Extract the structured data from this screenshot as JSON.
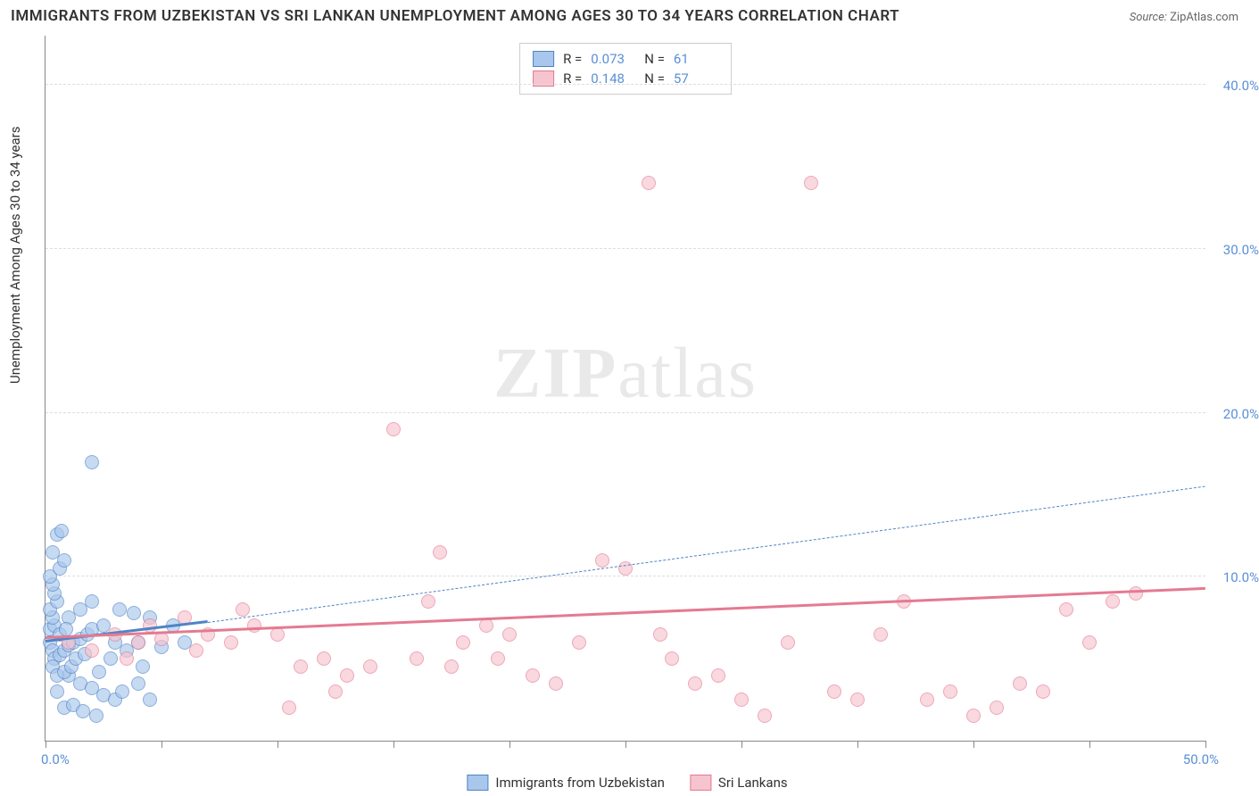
{
  "title": "IMMIGRANTS FROM UZBEKISTAN VS SRI LANKAN UNEMPLOYMENT AMONG AGES 30 TO 34 YEARS CORRELATION CHART",
  "source_label": "Source:",
  "source_name": "ZipAtlas.com",
  "watermark": {
    "bold": "ZIP",
    "rest": "atlas"
  },
  "ylabel": "Unemployment Among Ages 30 to 34 years",
  "chart": {
    "type": "scatter",
    "xlim": [
      0,
      50
    ],
    "ylim": [
      0,
      43
    ],
    "x_tick_positions": [
      0,
      5,
      10,
      15,
      20,
      25,
      30,
      35,
      40,
      45,
      50
    ],
    "x_tick_labels": {
      "min": "0.0%",
      "max": "50.0%"
    },
    "y_gridlines": [
      10,
      20,
      30,
      40
    ],
    "y_tick_labels": [
      "10.0%",
      "20.0%",
      "30.0%",
      "40.0%"
    ],
    "background_color": "#ffffff",
    "grid_color": "#dddddd",
    "axis_color": "#888888",
    "tick_label_color": "#5b8fd6",
    "marker_radius": 7,
    "marker_opacity": 0.65
  },
  "series": [
    {
      "name": "Immigrants from Uzbekistan",
      "fill": "#a9c7ec",
      "stroke": "#4f84c4",
      "r_value": "0.073",
      "n_value": "61",
      "trend": {
        "x1": 0,
        "y1": 6.0,
        "x2": 7,
        "y2": 7.2,
        "width": 3,
        "dashed": false,
        "extend_x2": 50,
        "extend_y2": 15.5,
        "extend_dashed": true
      },
      "points": [
        [
          0.2,
          6.0
        ],
        [
          0.3,
          5.5
        ],
        [
          0.2,
          6.8
        ],
        [
          0.4,
          7.0
        ],
        [
          0.3,
          7.5
        ],
        [
          0.2,
          8.0
        ],
        [
          0.5,
          8.5
        ],
        [
          0.4,
          9.0
        ],
        [
          0.3,
          9.5
        ],
        [
          0.2,
          10.0
        ],
        [
          0.6,
          10.5
        ],
        [
          0.8,
          11.0
        ],
        [
          0.3,
          11.5
        ],
        [
          0.5,
          12.6
        ],
        [
          0.7,
          12.8
        ],
        [
          0.4,
          5.0
        ],
        [
          0.6,
          5.2
        ],
        [
          0.8,
          5.5
        ],
        [
          1.0,
          5.8
        ],
        [
          1.2,
          6.0
        ],
        [
          1.5,
          6.2
        ],
        [
          1.8,
          6.5
        ],
        [
          2.0,
          6.8
        ],
        [
          2.5,
          7.0
        ],
        [
          3.0,
          6.0
        ],
        [
          3.5,
          5.5
        ],
        [
          4.0,
          6.0
        ],
        [
          4.5,
          7.5
        ],
        [
          5.0,
          5.7
        ],
        [
          1.0,
          4.0
        ],
        [
          1.5,
          3.5
        ],
        [
          2.0,
          3.2
        ],
        [
          2.5,
          2.8
        ],
        [
          3.0,
          2.5
        ],
        [
          0.5,
          3.0
        ],
        [
          0.8,
          2.0
        ],
        [
          1.2,
          2.2
        ],
        [
          1.6,
          1.8
        ],
        [
          2.2,
          1.5
        ],
        [
          3.3,
          3.0
        ],
        [
          4.0,
          3.5
        ],
        [
          4.5,
          2.5
        ],
        [
          2.0,
          17.0
        ],
        [
          1.0,
          7.5
        ],
        [
          1.5,
          8.0
        ],
        [
          2.0,
          8.5
        ],
        [
          0.3,
          4.5
        ],
        [
          0.5,
          4.0
        ],
        [
          0.8,
          4.2
        ],
        [
          1.1,
          4.5
        ],
        [
          5.5,
          7.0
        ],
        [
          6.0,
          6.0
        ],
        [
          4.2,
          4.5
        ],
        [
          3.8,
          7.8
        ],
        [
          2.8,
          5.0
        ],
        [
          3.2,
          8.0
        ],
        [
          0.6,
          6.5
        ],
        [
          0.9,
          6.8
        ],
        [
          1.3,
          5.0
        ],
        [
          1.7,
          5.3
        ],
        [
          2.3,
          4.2
        ]
      ]
    },
    {
      "name": "Sri Lankans",
      "fill": "#f6c4cf",
      "stroke": "#e47a91",
      "r_value": "0.148",
      "n_value": "57",
      "trend": {
        "x1": 0,
        "y1": 6.2,
        "x2": 50,
        "y2": 9.2,
        "width": 3,
        "dashed": false
      },
      "points": [
        [
          1.0,
          6.0
        ],
        [
          2.0,
          5.5
        ],
        [
          3.0,
          6.5
        ],
        [
          4.0,
          6.0
        ],
        [
          5.0,
          6.2
        ],
        [
          6.0,
          7.5
        ],
        [
          7.0,
          6.5
        ],
        [
          8.0,
          6.0
        ],
        [
          9.0,
          7.0
        ],
        [
          10.0,
          6.5
        ],
        [
          11.0,
          4.5
        ],
        [
          12.0,
          5.0
        ],
        [
          13.0,
          4.0
        ],
        [
          14.0,
          4.5
        ],
        [
          15.0,
          19.0
        ],
        [
          16.0,
          5.0
        ],
        [
          16.5,
          8.5
        ],
        [
          17.0,
          11.5
        ],
        [
          18.0,
          6.0
        ],
        [
          19.0,
          7.0
        ],
        [
          20.0,
          6.5
        ],
        [
          21.0,
          4.0
        ],
        [
          22.0,
          3.5
        ],
        [
          23.0,
          6.0
        ],
        [
          24.0,
          11.0
        ],
        [
          25.0,
          10.5
        ],
        [
          10.5,
          2.0
        ],
        [
          26.0,
          34.0
        ],
        [
          27.0,
          5.0
        ],
        [
          28.0,
          3.5
        ],
        [
          29.0,
          4.0
        ],
        [
          30.0,
          2.5
        ],
        [
          31.0,
          1.5
        ],
        [
          32.0,
          6.0
        ],
        [
          33.0,
          34.0
        ],
        [
          34.0,
          3.0
        ],
        [
          35.0,
          2.5
        ],
        [
          36.0,
          6.5
        ],
        [
          37.0,
          8.5
        ],
        [
          38.0,
          2.5
        ],
        [
          39.0,
          3.0
        ],
        [
          40.0,
          1.5
        ],
        [
          41.0,
          2.0
        ],
        [
          42.0,
          3.5
        ],
        [
          43.0,
          3.0
        ],
        [
          44.0,
          8.0
        ],
        [
          45.0,
          6.0
        ],
        [
          46.0,
          8.5
        ],
        [
          47.0,
          9.0
        ],
        [
          3.5,
          5.0
        ],
        [
          4.5,
          7.0
        ],
        [
          6.5,
          5.5
        ],
        [
          8.5,
          8.0
        ],
        [
          12.5,
          3.0
        ],
        [
          17.5,
          4.5
        ],
        [
          19.5,
          5.0
        ],
        [
          26.5,
          6.5
        ]
      ]
    }
  ],
  "legend_top": {
    "r_label": "R =",
    "n_label": "N ="
  },
  "legend_bottom": [
    {
      "label": "Immigrants from Uzbekistan",
      "fill": "#a9c7ec",
      "stroke": "#4f84c4"
    },
    {
      "label": "Sri Lankans",
      "fill": "#f6c4cf",
      "stroke": "#e47a91"
    }
  ]
}
